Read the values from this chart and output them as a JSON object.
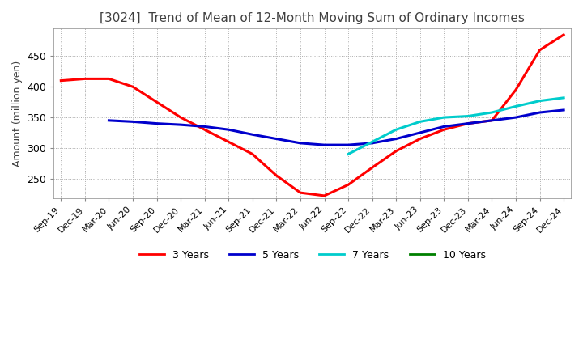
{
  "title": "[3024]  Trend of Mean of 12-Month Moving Sum of Ordinary Incomes",
  "ylabel": "Amount (million yen)",
  "ylim": [
    218,
    495
  ],
  "yticks": [
    250,
    300,
    350,
    400,
    450
  ],
  "background_color": "#ffffff",
  "title_color": "#404040",
  "grid_color": "#aaaaaa",
  "x_labels": [
    "Sep-19",
    "Dec-19",
    "Mar-20",
    "Jun-20",
    "Sep-20",
    "Dec-20",
    "Mar-21",
    "Jun-21",
    "Sep-21",
    "Dec-21",
    "Mar-22",
    "Jun-22",
    "Sep-22",
    "Dec-22",
    "Mar-23",
    "Jun-23",
    "Sep-23",
    "Dec-23",
    "Mar-24",
    "Jun-24",
    "Sep-24",
    "Dec-24"
  ],
  "series": {
    "3 Years": {
      "color": "#ff0000",
      "values": [
        410,
        413,
        413,
        400,
        375,
        350,
        330,
        310,
        290,
        255,
        227,
        222,
        240,
        268,
        295,
        315,
        330,
        340,
        345,
        395,
        460,
        485
      ]
    },
    "5 Years": {
      "color": "#0000cc",
      "values": [
        null,
        null,
        345,
        343,
        340,
        338,
        335,
        330,
        322,
        315,
        308,
        305,
        305,
        308,
        315,
        325,
        335,
        340,
        345,
        350,
        358,
        362
      ]
    },
    "7 Years": {
      "color": "#00cccc",
      "values": [
        null,
        null,
        null,
        null,
        null,
        null,
        null,
        null,
        null,
        null,
        null,
        null,
        290,
        310,
        330,
        343,
        350,
        352,
        358,
        368,
        377,
        382
      ]
    },
    "10 Years": {
      "color": "#008000",
      "values": [
        null,
        null,
        null,
        null,
        null,
        null,
        null,
        null,
        null,
        null,
        null,
        null,
        null,
        null,
        null,
        null,
        null,
        null,
        null,
        null,
        null,
        null
      ]
    }
  },
  "legend_labels": [
    "3 Years",
    "5 Years",
    "7 Years",
    "10 Years"
  ],
  "legend_colors": [
    "#ff0000",
    "#0000cc",
    "#00cccc",
    "#008000"
  ]
}
